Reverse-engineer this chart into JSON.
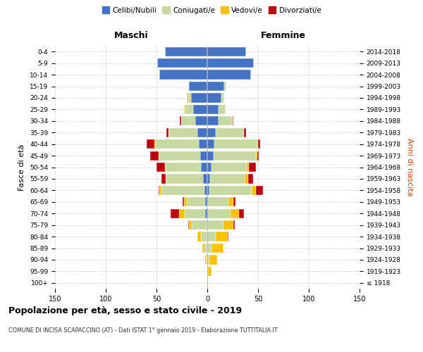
{
  "age_groups": [
    "100+",
    "95-99",
    "90-94",
    "85-89",
    "80-84",
    "75-79",
    "70-74",
    "65-69",
    "60-64",
    "55-59",
    "50-54",
    "45-49",
    "40-44",
    "35-39",
    "30-34",
    "25-29",
    "20-24",
    "15-19",
    "10-14",
    "5-9",
    "0-4"
  ],
  "birth_years": [
    "≤ 1918",
    "1919-1923",
    "1924-1928",
    "1929-1933",
    "1934-1938",
    "1939-1943",
    "1944-1948",
    "1949-1953",
    "1954-1958",
    "1959-1963",
    "1964-1968",
    "1969-1973",
    "1974-1978",
    "1979-1983",
    "1984-1988",
    "1989-1993",
    "1994-1998",
    "1999-2003",
    "2004-2008",
    "2009-2013",
    "2014-2018"
  ],
  "male_celibi": [
    0,
    0,
    0,
    0,
    0,
    1,
    2,
    2,
    3,
    4,
    6,
    7,
    8,
    10,
    12,
    14,
    16,
    18,
    47,
    49,
    42
  ],
  "male_coniugati": [
    0,
    0,
    1,
    3,
    6,
    14,
    20,
    18,
    42,
    36,
    35,
    40,
    43,
    28,
    14,
    8,
    3,
    1,
    0,
    0,
    0
  ],
  "male_vedovi": [
    0,
    0,
    1,
    2,
    4,
    3,
    6,
    3,
    2,
    1,
    1,
    1,
    1,
    0,
    0,
    1,
    1,
    0,
    0,
    0,
    0
  ],
  "male_divorziati": [
    0,
    0,
    0,
    0,
    0,
    1,
    8,
    1,
    1,
    4,
    8,
    8,
    8,
    2,
    1,
    0,
    0,
    0,
    0,
    0,
    0
  ],
  "female_celibi": [
    0,
    0,
    0,
    0,
    0,
    0,
    1,
    1,
    2,
    3,
    4,
    6,
    7,
    8,
    11,
    11,
    14,
    17,
    43,
    46,
    38
  ],
  "female_coniugati": [
    0,
    1,
    2,
    4,
    8,
    16,
    22,
    20,
    42,
    34,
    35,
    42,
    42,
    28,
    14,
    7,
    3,
    2,
    0,
    0,
    0
  ],
  "female_vedovi": [
    1,
    3,
    8,
    12,
    12,
    10,
    8,
    5,
    4,
    3,
    2,
    1,
    1,
    0,
    0,
    0,
    0,
    0,
    0,
    0,
    0
  ],
  "female_divorziati": [
    0,
    0,
    0,
    0,
    1,
    1,
    5,
    2,
    7,
    5,
    7,
    2,
    2,
    2,
    1,
    0,
    0,
    0,
    0,
    0,
    0
  ],
  "colors": {
    "celibi": "#4472c4",
    "coniugati": "#c5d9a0",
    "vedovi": "#ffc000",
    "divorziati": "#c0000c"
  },
  "xlim": 150,
  "title": "Popolazione per età, sesso e stato civile - 2019",
  "subtitle": "COMUNE DI INCISA SCAPACCINO (AT) - Dati ISTAT 1° gennaio 2019 - Elaborazione TUTTITALIA.IT",
  "xlabel_left": "Maschi",
  "xlabel_right": "Femmine",
  "ylabel": "Fasce di età",
  "ylabel_right": "Anni di nascita",
  "bg_color": "#ffffff",
  "grid_color": "#cccccc"
}
